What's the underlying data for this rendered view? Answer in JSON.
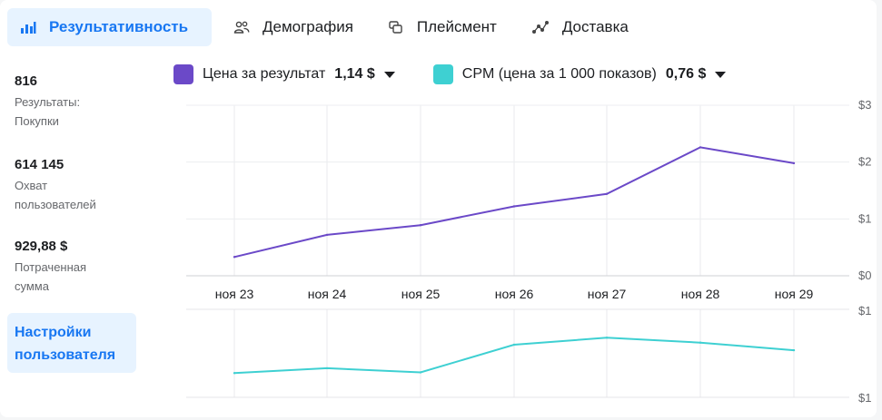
{
  "tabs": [
    {
      "label": "Результативность",
      "icon": "bar-chart-icon",
      "active": true
    },
    {
      "label": "Демография",
      "icon": "people-icon",
      "active": false
    },
    {
      "label": "Плейсмент",
      "icon": "placement-icon",
      "active": false
    },
    {
      "label": "Доставка",
      "icon": "delivery-icon",
      "active": false
    }
  ],
  "metrics": [
    {
      "value": "816",
      "label": "Результаты: Покупки"
    },
    {
      "value": "614 145",
      "label": "Охват пользователей"
    },
    {
      "value": "929,88 $",
      "label": "Потраченная сумма"
    }
  ],
  "settings_button": "Настройки пользователя",
  "legend": [
    {
      "name": "Цена за результат",
      "value": "1,14 $",
      "color": "#6b49c8"
    },
    {
      "name": "CPM (цена за 1 000 показов)",
      "value": "0,76 $",
      "color": "#3ed0d2"
    }
  ],
  "chart_data": [
    {
      "type": "line",
      "x": [
        "ноя 23",
        "ноя 24",
        "ноя 25",
        "ноя 26",
        "ноя 27",
        "ноя 28",
        "ноя 29"
      ],
      "series": [
        {
          "name": "Цена за результат",
          "values": [
            0.33,
            0.72,
            0.89,
            1.22,
            1.44,
            2.26,
            1.98
          ]
        }
      ],
      "yticks": [
        "$3",
        "$2",
        "$1",
        "$0"
      ],
      "ylim": [
        0,
        3
      ],
      "grid": true
    },
    {
      "type": "line",
      "x": [
        "ноя 23",
        "ноя 24",
        "ноя 25",
        "ноя 26",
        "ноя 27",
        "ноя 28",
        "ноя 29"
      ],
      "series": [
        {
          "name": "CPM (цена за 1 000 показов)",
          "values": [
            0.57,
            0.64,
            0.58,
            0.98,
            1.08,
            1.01,
            0.9
          ]
        }
      ],
      "yticks": [
        "$1",
        "$1"
      ],
      "ylim": [
        0.22,
        1.49
      ],
      "grid": false
    }
  ]
}
